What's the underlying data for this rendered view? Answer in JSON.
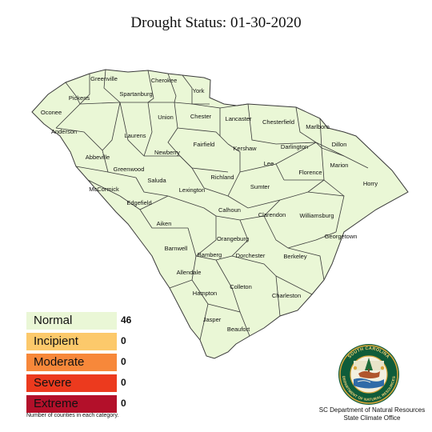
{
  "title": "Drought Status:  01-30-2020",
  "colors": {
    "normal": "#eaf7d6",
    "county_fill": "#eaf7d6",
    "county_line": "#3a3a3a",
    "incipient": "#fcc96b",
    "moderate": "#f7883a",
    "severe": "#ec3a1e",
    "extreme": "#b3102a"
  },
  "legend": [
    {
      "label": "Normal",
      "count": "46"
    },
    {
      "label": "Incipient",
      "count": "0"
    },
    {
      "label": "Moderate",
      "count": "0"
    },
    {
      "label": "Severe",
      "count": "0"
    },
    {
      "label": "Extreme",
      "count": "0"
    }
  ],
  "legend_note": "Number of counties in each category.",
  "credit": {
    "line1": "SC Department of Natural Resources",
    "line2": "State Climate Office"
  },
  "seal_text": {
    "top": "SOUTH CAROLINA",
    "bottom": "DEPARTMENT OF NATURAL RESOURCES"
  },
  "counties": [
    "Greenville",
    "Cherokee",
    "York",
    "Pickens",
    "Spartanburg",
    "Oconee",
    "Union",
    "Chester",
    "Lancaster",
    "Chesterfield",
    "Marlboro",
    "Anderson",
    "Laurens",
    "Fairfield",
    "Kershaw",
    "Darlington",
    "Dillon",
    "Newberry",
    "Abbeville",
    "Lee",
    "Marion",
    "Greenwood",
    "Richland",
    "Florence",
    "McCormick",
    "Saluda",
    "Lexington",
    "Sumter",
    "Horry",
    "Edgefield",
    "Calhoun",
    "Clarendon",
    "Williamsburg",
    "Aiken",
    "Orangeburg",
    "Georgetown",
    "Barnwell",
    "Bamberg",
    "Dorchester",
    "Berkeley",
    "Allendale",
    "Colleton",
    "Hampton",
    "Charleston",
    "Jasper",
    "Beaufort"
  ]
}
